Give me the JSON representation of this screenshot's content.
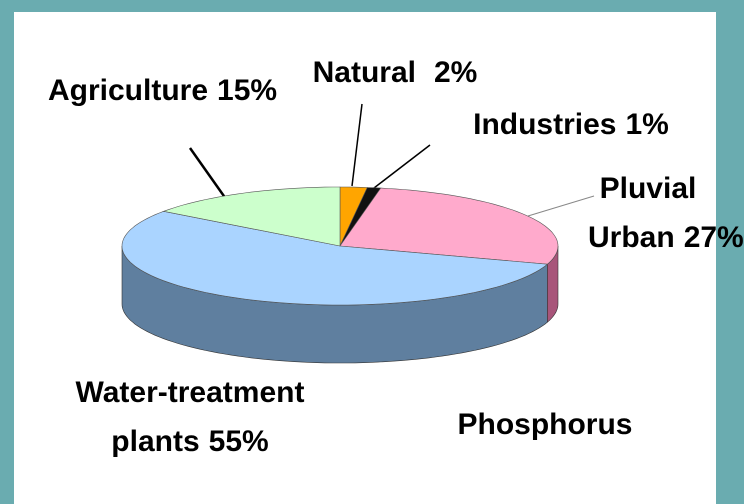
{
  "chart_data": {
    "type": "pie3d",
    "title": "Phosphorus",
    "categories": [
      "Natural",
      "Industries",
      "Pluvial Urban",
      "Water-treatment plants",
      "Agriculture"
    ],
    "values": [
      2,
      1,
      27,
      55,
      15
    ],
    "value_labels": [
      "2%",
      "1%",
      "27%",
      "55%",
      "15%"
    ],
    "colors": [
      "#ffa500",
      "#111111",
      "#ffaacc",
      "#aad4ff",
      "#ccffcc"
    ],
    "side_colors": [
      "#b87700",
      "#000000",
      "#a8557a",
      "#5f7f9f",
      "#7fa37f"
    ]
  }
}
